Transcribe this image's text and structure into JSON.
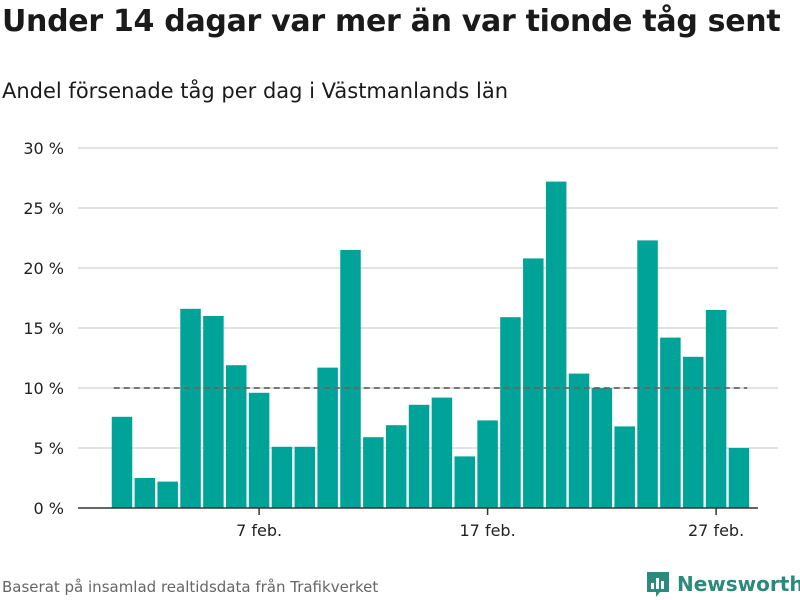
{
  "title": "Under 14 dagar var mer än var tionde tåg sent",
  "subtitle": "Andel försenade tåg per dag i Västmanlands län",
  "source": "Baserat på insamlad realtidsdata från Trafikverket",
  "brand": "Newsworthy",
  "colors": {
    "bar": "#00a398",
    "threshold": "#666666",
    "grid": "#d9d9d9",
    "brand": "#2c8a7d"
  },
  "chart_data": {
    "type": "bar",
    "x": [
      1,
      2,
      3,
      4,
      5,
      6,
      7,
      8,
      9,
      10,
      11,
      12,
      13,
      14,
      15,
      16,
      17,
      18,
      19,
      20,
      21,
      22,
      23,
      24,
      25,
      26,
      27,
      28
    ],
    "values": [
      7.6,
      2.5,
      2.2,
      16.6,
      16.0,
      11.9,
      9.6,
      5.1,
      5.1,
      11.7,
      21.5,
      5.9,
      6.9,
      8.6,
      9.2,
      4.3,
      7.3,
      15.9,
      20.8,
      27.2,
      11.2,
      10.0,
      6.8,
      22.3,
      14.2,
      12.6,
      16.5,
      5.0
    ],
    "threshold": 10,
    "ylim": [
      0,
      30
    ],
    "yticks": [
      0,
      5,
      10,
      15,
      20,
      25,
      30
    ],
    "ytick_labels": [
      "0 %",
      "5 %",
      "10 %",
      "15 %",
      "20 %",
      "25 %",
      "30 %"
    ],
    "xticks": [
      {
        "day": 7,
        "label": "7 feb."
      },
      {
        "day": 17,
        "label": "17 feb."
      },
      {
        "day": 27,
        "label": "27 feb."
      }
    ],
    "grid": true,
    "xlabel": "",
    "ylabel": ""
  }
}
